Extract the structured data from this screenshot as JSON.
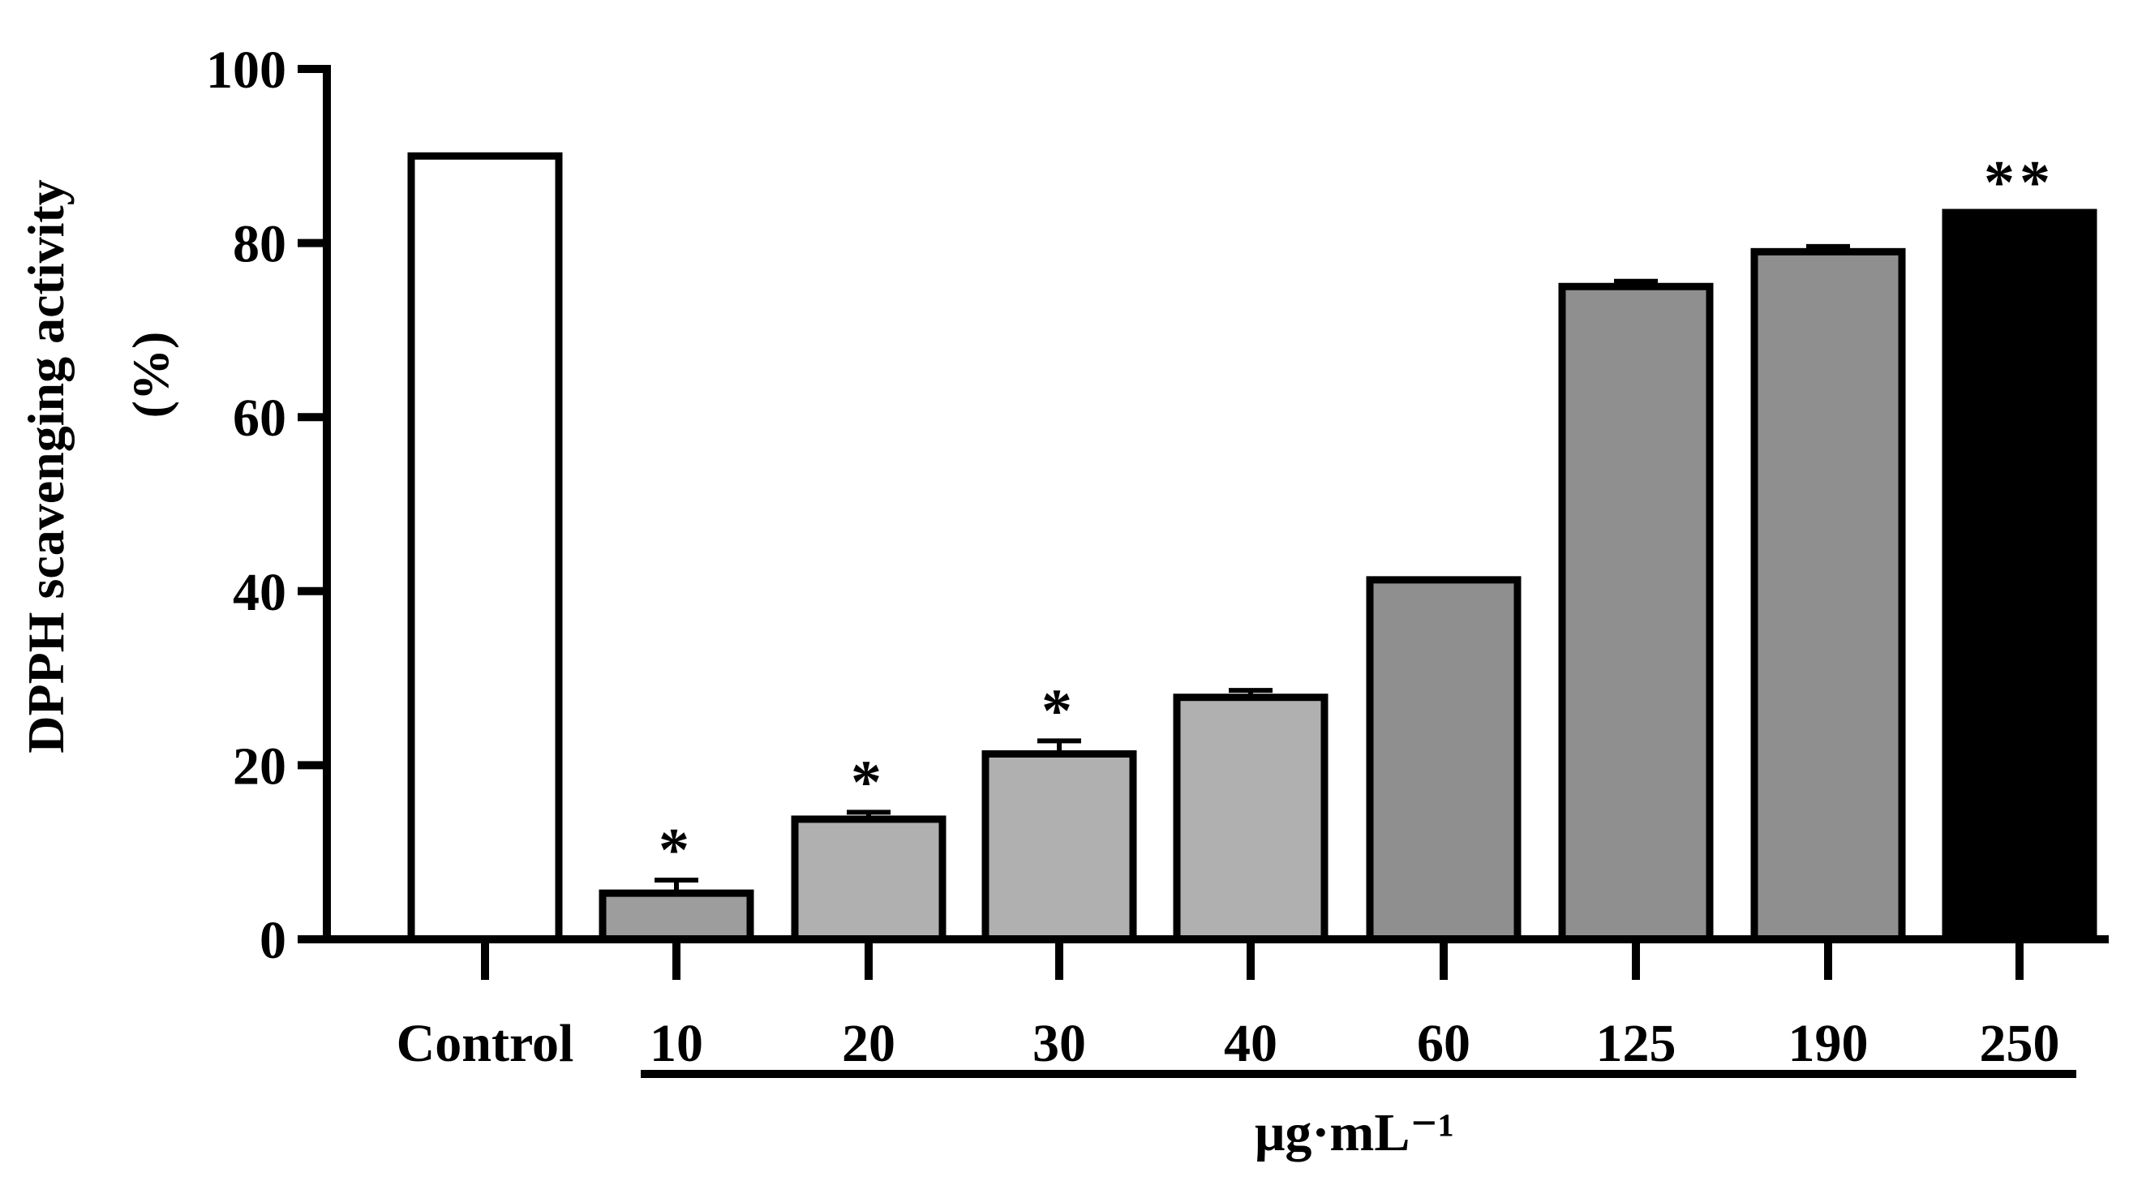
{
  "chart_data": {
    "type": "bar",
    "ylabel_line1": "DPPH scavenging activity",
    "ylabel_line2": "(%)",
    "xlabel": "μg·mL⁻¹",
    "ylim": [
      0,
      100
    ],
    "yticks": [
      "0",
      "20",
      "40",
      "60",
      "80",
      "100"
    ],
    "categories": [
      "Control",
      "10",
      "20",
      "30",
      "40",
      "60",
      "125",
      "190",
      "250"
    ],
    "values": [
      90,
      5.3,
      13.8,
      21.3,
      27.8,
      41.3,
      75,
      79,
      83.5
    ],
    "errors": [
      0,
      1.5,
      0.8,
      1.5,
      0.8,
      0,
      0.6,
      0.6,
      0
    ],
    "annotations": [
      "",
      "*",
      "*",
      "*",
      "",
      "",
      "",
      "",
      "**"
    ],
    "bar_colors": [
      "#ffffff",
      "#9d9d9d",
      "#b0b0b0",
      "#b0b0b0",
      "#b0b0b0",
      "#8f8f8f",
      "#8f8f8f",
      "#8f8f8f",
      "#000000"
    ],
    "grid": false
  }
}
